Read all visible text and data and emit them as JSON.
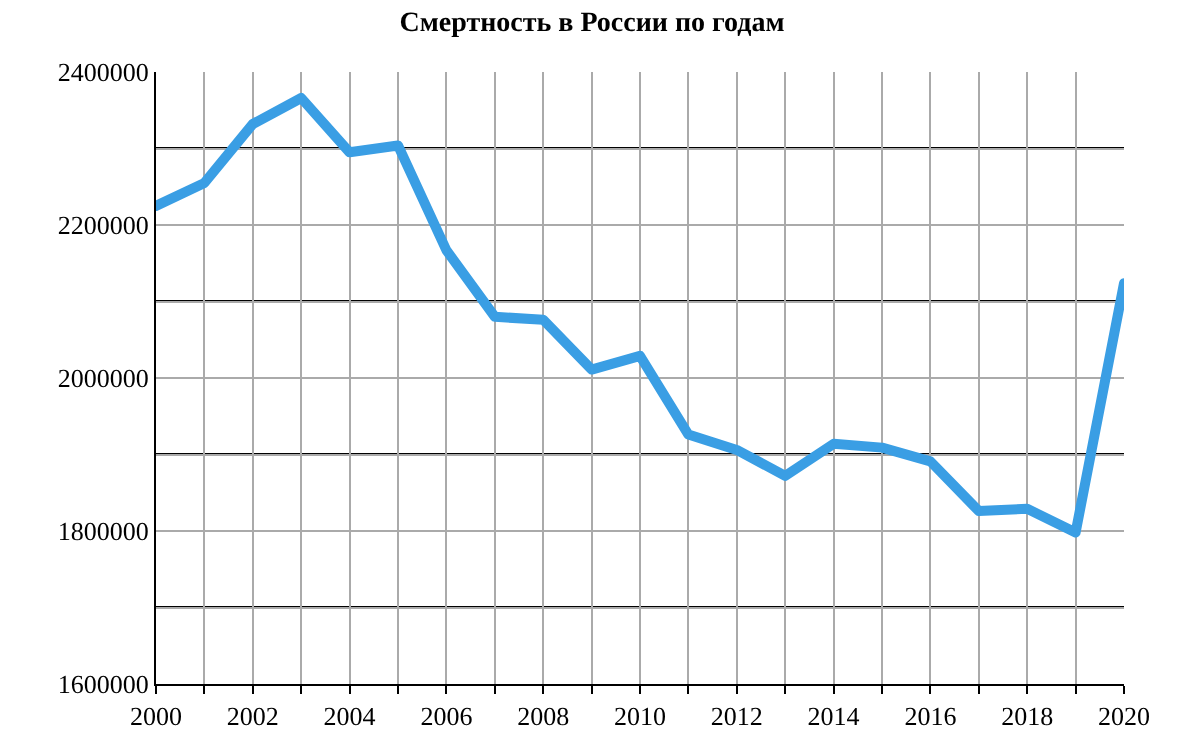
{
  "chart_data": {
    "type": "line",
    "title": "Смертность в России по годам",
    "x": [
      2000,
      2001,
      2002,
      2003,
      2004,
      2005,
      2006,
      2007,
      2008,
      2009,
      2010,
      2011,
      2012,
      2013,
      2014,
      2015,
      2016,
      2017,
      2018,
      2019,
      2020
    ],
    "series": [
      {
        "color": "#3a9ee4",
        "values": [
          2225000,
          2255000,
          2332000,
          2366000,
          2295000,
          2304000,
          2167000,
          2080000,
          2076000,
          2011000,
          2029000,
          1926000,
          1906000,
          1872000,
          1914000,
          1909000,
          1891000,
          1826000,
          1829000,
          1798000,
          2124000
        ]
      }
    ],
    "xlim": [
      2000,
      2020
    ],
    "xticks": [
      2000,
      {
        "value": 2001,
        "label": null
      },
      2002,
      {
        "value": 2003,
        "label": null
      },
      2004,
      {
        "value": 2005,
        "label": null
      },
      2006,
      {
        "value": 2007,
        "label": null
      },
      2008,
      {
        "value": 2009,
        "label": null
      },
      2010,
      {
        "value": 2011,
        "label": null
      },
      2012,
      {
        "value": 2013,
        "label": null
      },
      2014,
      {
        "value": 2015,
        "label": null
      },
      2016,
      {
        "value": 2017,
        "label": null
      },
      2018,
      {
        "value": 2019,
        "label": null
      },
      2020
    ],
    "ylim": [
      1600000,
      2400000
    ],
    "yticks": [
      1600000,
      {
        "value": 1700000,
        "label": null
      },
      1800000,
      {
        "value": 1900000,
        "label": null
      },
      2000000,
      {
        "value": 2100000,
        "label": null
      },
      2200000,
      {
        "value": 2300000,
        "label": null
      },
      2400000
    ],
    "grid": true,
    "legend": false,
    "marker": "none",
    "line_style": "solid"
  }
}
